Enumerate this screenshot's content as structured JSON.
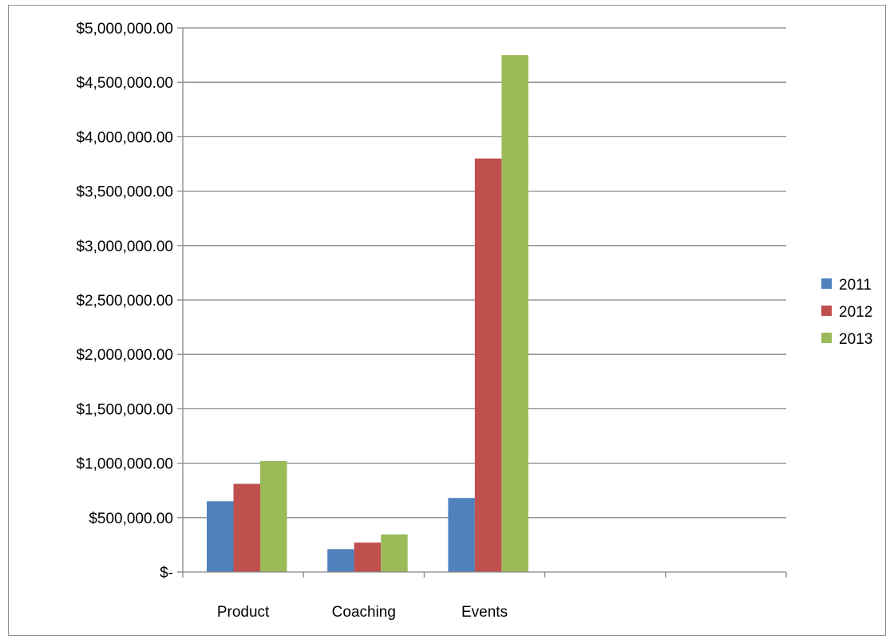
{
  "chart_data": {
    "type": "bar",
    "title": "",
    "xlabel": "",
    "ylabel": "",
    "categories": [
      "Product",
      "Coaching",
      "Events",
      "",
      ""
    ],
    "series": [
      {
        "name": "2011",
        "values": [
          650000,
          210000,
          680000,
          null,
          null
        ]
      },
      {
        "name": "2012",
        "values": [
          810000,
          270000,
          3800000,
          null,
          null
        ]
      },
      {
        "name": "2013",
        "values": [
          1020000,
          345000,
          4750000,
          null,
          null
        ]
      }
    ],
    "ylim": [
      0,
      5000000
    ],
    "ytick_values": [
      0,
      500000,
      1000000,
      1500000,
      2000000,
      2500000,
      3000000,
      3500000,
      4000000,
      4500000,
      5000000
    ],
    "ytick_labels": [
      "$-",
      "$500,000.00",
      "$1,000,000.00",
      "$1,500,000.00",
      "$2,000,000.00",
      "$2,500,000.00",
      "$3,000,000.00",
      "$3,500,000.00",
      "$4,000,000.00",
      "$4,500,000.00",
      "$5,000,000.00"
    ],
    "grid": true,
    "legend_position": "right"
  },
  "colors": {
    "2011": "#4f81bd",
    "2012": "#c0504d",
    "2013": "#9bbb59",
    "gridline": "#868686",
    "axis": "#868686"
  }
}
